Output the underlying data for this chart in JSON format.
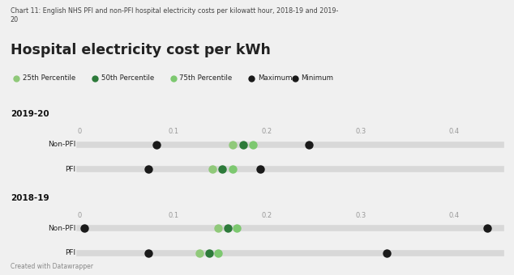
{
  "title_small": "Chart 11: English NHS PFI and non-PFI hospital electricity costs per kilowatt hour, 2018-19 and 2019-\n20",
  "title_large": "Hospital electricity cost per kWh",
  "footer": "Created with Datawrapper",
  "bg_color": "#f0f0f0",
  "xlim": [
    0,
    0.45
  ],
  "xticks": [
    0,
    0.1,
    0.2,
    0.3,
    0.4
  ],
  "groups": [
    {
      "label": "2019-20",
      "rows": [
        {
          "name": "Non-PFI",
          "p25": 0.163,
          "p50": 0.175,
          "p75": 0.185,
          "maximum": 0.245,
          "minimum": 0.082
        },
        {
          "name": "PFI",
          "p25": 0.142,
          "p50": 0.152,
          "p75": 0.163,
          "maximum": 0.193,
          "minimum": 0.073
        }
      ]
    },
    {
      "label": "2018-19",
      "rows": [
        {
          "name": "Non-PFI",
          "p25": 0.148,
          "p50": 0.158,
          "p75": 0.168,
          "maximum": 0.435,
          "minimum": 0.005
        },
        {
          "name": "PFI",
          "p25": 0.128,
          "p50": 0.138,
          "p75": 0.148,
          "maximum": 0.328,
          "minimum": 0.073
        }
      ]
    }
  ],
  "color_p25": "#90c97a",
  "color_p50": "#2d7a3a",
  "color_p75": "#7dc870",
  "color_max": "#1a1a1a",
  "color_min": "#1a1a1a",
  "strip_color": "#d8d8d8",
  "tick_color": "#999999",
  "label_color": "#222222",
  "group_label_color": "#111111",
  "title_small_color": "#444444",
  "footer_color": "#888888"
}
